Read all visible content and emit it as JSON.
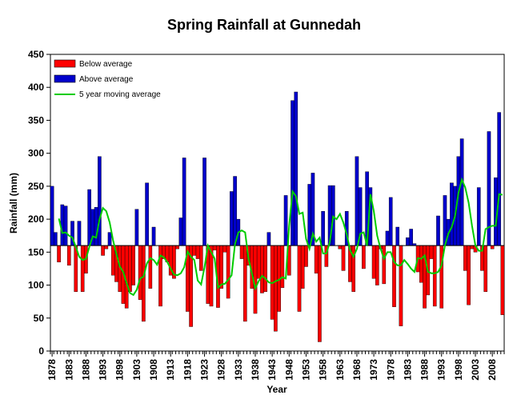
{
  "chart_data": {
    "type": "bar",
    "title": "Spring Rainfall at Gunnedah",
    "xlabel": "Year",
    "ylabel": "Rainfall (mm)",
    "ylim": [
      0,
      450
    ],
    "yticks": [
      0,
      50,
      100,
      150,
      200,
      250,
      300,
      350,
      400,
      450
    ],
    "xlim": [
      1878,
      2012
    ],
    "xticks": [
      1878,
      1883,
      1888,
      1893,
      1898,
      1903,
      1908,
      1913,
      1918,
      1923,
      1928,
      1933,
      1938,
      1943,
      1948,
      1953,
      1958,
      1963,
      1968,
      1973,
      1978,
      1983,
      1988,
      1993,
      1998,
      2003,
      2008
    ],
    "baseline": 160,
    "legend_position": "top-left",
    "legend": [
      {
        "label": "Below average",
        "color": "#ff0000",
        "kind": "bar"
      },
      {
        "label": "Above average",
        "color": "#0000cc",
        "kind": "bar"
      },
      {
        "label": "5 year moving average",
        "color": "#00cc00",
        "kind": "line"
      }
    ],
    "colors": {
      "below": "#ff0000",
      "above": "#0000cc",
      "moving_average": "#00cc00",
      "bar_edge": "#000000"
    },
    "x": [
      1878,
      1879,
      1880,
      1881,
      1882,
      1883,
      1884,
      1885,
      1886,
      1887,
      1888,
      1889,
      1890,
      1891,
      1892,
      1893,
      1894,
      1895,
      1896,
      1897,
      1898,
      1899,
      1900,
      1901,
      1902,
      1903,
      1904,
      1905,
      1906,
      1907,
      1908,
      1909,
      1910,
      1911,
      1912,
      1913,
      1914,
      1915,
      1916,
      1917,
      1918,
      1919,
      1920,
      1921,
      1922,
      1923,
      1924,
      1925,
      1926,
      1927,
      1928,
      1929,
      1930,
      1931,
      1932,
      1933,
      1934,
      1935,
      1936,
      1937,
      1938,
      1939,
      1940,
      1941,
      1942,
      1943,
      1944,
      1945,
      1946,
      1947,
      1948,
      1949,
      1950,
      1951,
      1952,
      1953,
      1954,
      1955,
      1956,
      1957,
      1958,
      1959,
      1960,
      1961,
      1962,
      1963,
      1964,
      1965,
      1966,
      1967,
      1968,
      1969,
      1970,
      1971,
      1972,
      1973,
      1974,
      1975,
      1976,
      1977,
      1978,
      1979,
      1980,
      1981,
      1982,
      1983,
      1984,
      1985,
      1986,
      1987,
      1988,
      1989,
      1990,
      1991,
      1992,
      1993,
      1994,
      1995,
      1996,
      1997,
      1998,
      1999,
      2000,
      2001,
      2002,
      2003,
      2004,
      2005,
      2006,
      2007,
      2008,
      2009,
      2010,
      2011
    ],
    "values": [
      250,
      180,
      135,
      222,
      220,
      130,
      197,
      90,
      197,
      90,
      118,
      245,
      215,
      218,
      295,
      145,
      155,
      180,
      115,
      105,
      90,
      72,
      65,
      90,
      100,
      215,
      78,
      45,
      255,
      95,
      188,
      160,
      68,
      140,
      135,
      115,
      110,
      155,
      202,
      293,
      60,
      37,
      145,
      140,
      122,
      293,
      72,
      68,
      153,
      66,
      95,
      150,
      80,
      242,
      265,
      200,
      140,
      45,
      130,
      95,
      57,
      110,
      88,
      90,
      180,
      48,
      30,
      60,
      96,
      236,
      115,
      380,
      393,
      60,
      95,
      128,
      253,
      270,
      118,
      14,
      212,
      128,
      251,
      251,
      160,
      155,
      122,
      212,
      105,
      90,
      295,
      248,
      125,
      272,
      248,
      110,
      100,
      155,
      102,
      182,
      233,
      67,
      188,
      38,
      160,
      172,
      185,
      163,
      120,
      104,
      65,
      85,
      140,
      68,
      205,
      65,
      236,
      200,
      255,
      250,
      295,
      322,
      122,
      70,
      155,
      150,
      248,
      122,
      90,
      333,
      155,
      263,
      362,
      55
    ],
    "moving_average": [
      201,
      179,
      180,
      175,
      172,
      158,
      143,
      138,
      140,
      158,
      174,
      172,
      200,
      217,
      212,
      195,
      168,
      147,
      128,
      120,
      103,
      88,
      85,
      93,
      110,
      113,
      133,
      141,
      138,
      131,
      145,
      142,
      135,
      125,
      116,
      115,
      118,
      127,
      151,
      143,
      138,
      107,
      101,
      127,
      160,
      150,
      140,
      96,
      101,
      102,
      108,
      115,
      162,
      180,
      183,
      180,
      140,
      118,
      95,
      106,
      114,
      110,
      104,
      103,
      106,
      108,
      112,
      110,
      190,
      242,
      235,
      208,
      210,
      170,
      155,
      178,
      166,
      172,
      148,
      148,
      165,
      204,
      200,
      208,
      195,
      177,
      153,
      143,
      155,
      178,
      180,
      160,
      238,
      212,
      175,
      155,
      140,
      150,
      150,
      135,
      130,
      130,
      138,
      132,
      125,
      120,
      141,
      140,
      145,
      120,
      118,
      118,
      120,
      130,
      160,
      178,
      188,
      205,
      240,
      260,
      248,
      225,
      190,
      160,
      152,
      152,
      185,
      188,
      190,
      190,
      238,
      237
    ]
  }
}
